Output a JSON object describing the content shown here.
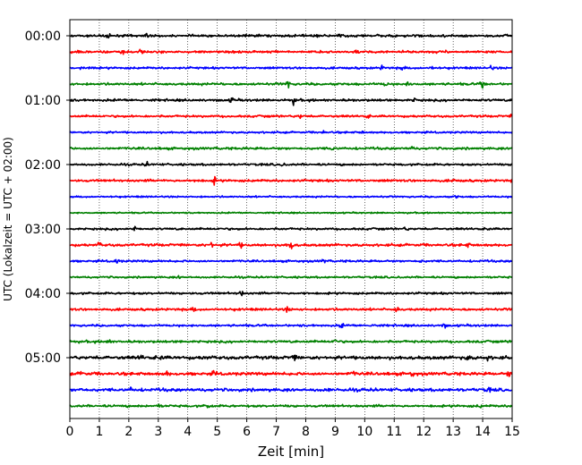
{
  "chart_data": {
    "type": "line",
    "subtype": "helicorder-seismogram",
    "title": "",
    "xlabel": "Zeit  [min]",
    "ylabel": "UTC (Lokalzeit = UTC + 02:00)",
    "xlim": [
      0,
      15
    ],
    "x_ticks": [
      "0",
      "1",
      "2",
      "3",
      "4",
      "5",
      "6",
      "7",
      "8",
      "9",
      "10",
      "11",
      "12",
      "13",
      "14",
      "15"
    ],
    "y_ticks": [
      {
        "label": "00:00",
        "row": 0
      },
      {
        "label": "01:00",
        "row": 4
      },
      {
        "label": "02:00",
        "row": 8
      },
      {
        "label": "03:00",
        "row": 12
      },
      {
        "label": "04:00",
        "row": 16
      },
      {
        "label": "05:00",
        "row": 20
      }
    ],
    "row_interval_minutes": 15,
    "grid": "vertical-dotted",
    "trace_colors": [
      "#000000",
      "#ff0000",
      "#0000ff",
      "#008000"
    ],
    "traces": [
      {
        "start": "00:00",
        "amplitude": 1.0,
        "events": [
          {
            "t": 1.3,
            "a": 1.6
          },
          {
            "t": 2.6,
            "a": 1.8
          },
          {
            "t": 9.2,
            "a": 1.3
          },
          {
            "t": 11.7,
            "a": 1.3
          },
          {
            "t": 14.8,
            "a": 1.6
          }
        ]
      },
      {
        "start": "00:15",
        "amplitude": 1.0,
        "events": [
          {
            "t": 0.3,
            "a": 1.8
          },
          {
            "t": 1.8,
            "a": 2.5
          },
          {
            "t": 2.4,
            "a": 2.8
          },
          {
            "t": 9.7,
            "a": 1.2
          }
        ]
      },
      {
        "start": "00:30",
        "amplitude": 0.9,
        "events": [
          {
            "t": 10.6,
            "a": 1.6
          },
          {
            "t": 11.3,
            "a": 2.3
          },
          {
            "t": 12.3,
            "a": 1.5
          },
          {
            "t": 14.3,
            "a": 2.0
          }
        ]
      },
      {
        "start": "00:45",
        "amplitude": 1.0,
        "events": [
          {
            "t": 7.4,
            "a": 3.6
          },
          {
            "t": 10.7,
            "a": 1.6
          },
          {
            "t": 11.5,
            "a": 2.6
          },
          {
            "t": 14.0,
            "a": 4.5
          }
        ]
      },
      {
        "start": "01:00",
        "amplitude": 1.0,
        "events": [
          {
            "t": 5.5,
            "a": 2.1
          },
          {
            "t": 7.6,
            "a": 3.2
          },
          {
            "t": 11.7,
            "a": 1.3
          }
        ]
      },
      {
        "start": "01:15",
        "amplitude": 0.9,
        "events": [
          {
            "t": 7.8,
            "a": 1.8
          },
          {
            "t": 10.1,
            "a": 1.2
          },
          {
            "t": 15.0,
            "a": 1.3
          }
        ]
      },
      {
        "start": "01:30",
        "amplitude": 0.8,
        "events": [
          {
            "t": 8.6,
            "a": 1.5
          },
          {
            "t": 9.9,
            "a": 1.1
          }
        ]
      },
      {
        "start": "01:45",
        "amplitude": 1.0,
        "events": [
          {
            "t": 8.9,
            "a": 1.6
          },
          {
            "t": 11.6,
            "a": 1.6
          }
        ]
      },
      {
        "start": "02:00",
        "amplitude": 0.9,
        "events": [
          {
            "t": 2.6,
            "a": 1.8
          },
          {
            "t": 7.2,
            "a": 1.2
          }
        ]
      },
      {
        "start": "02:15",
        "amplitude": 1.0,
        "events": [
          {
            "t": 4.3,
            "a": 3.2
          },
          {
            "t": 4.9,
            "a": 2.6
          },
          {
            "t": 13.0,
            "a": 1.3
          }
        ]
      },
      {
        "start": "02:30",
        "amplitude": 0.7,
        "events": [
          {
            "t": 13.1,
            "a": 1.8
          }
        ]
      },
      {
        "start": "02:45",
        "amplitude": 0.6,
        "events": []
      },
      {
        "start": "03:00",
        "amplitude": 0.9,
        "events": [
          {
            "t": 2.2,
            "a": 2.2
          },
          {
            "t": 11.4,
            "a": 1.6
          },
          {
            "t": 14.2,
            "a": 1.2
          }
        ]
      },
      {
        "start": "03:15",
        "amplitude": 1.1,
        "events": [
          {
            "t": 1.0,
            "a": 1.8
          },
          {
            "t": 4.8,
            "a": 2.8
          },
          {
            "t": 5.8,
            "a": 1.8
          },
          {
            "t": 7.5,
            "a": 5.0
          },
          {
            "t": 13.5,
            "a": 1.5
          }
        ]
      },
      {
        "start": "03:30",
        "amplitude": 0.9,
        "events": [
          {
            "t": 1.6,
            "a": 2.6
          },
          {
            "t": 8.6,
            "a": 1.5
          },
          {
            "t": 11.9,
            "a": 1.3
          }
        ]
      },
      {
        "start": "03:45",
        "amplitude": 0.8,
        "events": [
          {
            "t": 3.7,
            "a": 1.2
          }
        ]
      },
      {
        "start": "04:00",
        "amplitude": 0.9,
        "events": [
          {
            "t": 5.8,
            "a": 2.8
          },
          {
            "t": 8.0,
            "a": 1.5
          }
        ]
      },
      {
        "start": "04:15",
        "amplitude": 1.0,
        "events": [
          {
            "t": 4.2,
            "a": 1.6
          },
          {
            "t": 7.4,
            "a": 3.0
          },
          {
            "t": 11.1,
            "a": 2.8
          }
        ]
      },
      {
        "start": "04:30",
        "amplitude": 0.9,
        "events": [
          {
            "t": 9.2,
            "a": 2.4
          },
          {
            "t": 10.3,
            "a": 1.6
          },
          {
            "t": 12.7,
            "a": 2.0
          }
        ]
      },
      {
        "start": "04:45",
        "amplitude": 1.0,
        "events": [
          {
            "t": 1.3,
            "a": 2.4
          },
          {
            "t": 3.7,
            "a": 1.3
          },
          {
            "t": 9.0,
            "a": 1.5
          }
        ]
      },
      {
        "start": "05:00",
        "amplitude": 1.4,
        "events": [
          {
            "t": 2.4,
            "a": 1.9
          },
          {
            "t": 3.1,
            "a": 2.4
          },
          {
            "t": 4.6,
            "a": 1.8
          },
          {
            "t": 7.6,
            "a": 2.6
          },
          {
            "t": 13.5,
            "a": 2.2
          },
          {
            "t": 14.2,
            "a": 1.9
          }
        ]
      },
      {
        "start": "05:15",
        "amplitude": 1.3,
        "events": [
          {
            "t": 0.4,
            "a": 2.0
          },
          {
            "t": 3.3,
            "a": 1.8
          },
          {
            "t": 4.9,
            "a": 2.4
          },
          {
            "t": 9.6,
            "a": 1.8
          },
          {
            "t": 11.6,
            "a": 2.0
          },
          {
            "t": 14.9,
            "a": 2.5
          }
        ]
      },
      {
        "start": "05:30",
        "amplitude": 1.3,
        "events": [
          {
            "t": 0.4,
            "a": 1.8
          },
          {
            "t": 2.1,
            "a": 1.8
          },
          {
            "t": 8.7,
            "a": 1.8
          },
          {
            "t": 14.2,
            "a": 1.6
          }
        ]
      },
      {
        "start": "05:45",
        "amplitude": 1.0,
        "events": [
          {
            "t": 3.0,
            "a": 1.5
          },
          {
            "t": 4.7,
            "a": 1.8
          },
          {
            "t": 13.9,
            "a": 1.3
          }
        ]
      }
    ]
  }
}
